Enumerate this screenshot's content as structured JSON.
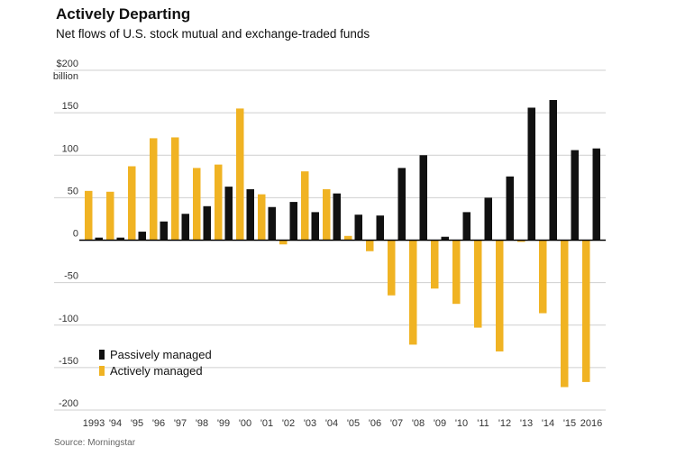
{
  "title": "Actively Departing",
  "subtitle": "Net flows of U.S. stock mutual and exchange-traded funds",
  "source": "Source: Morningstar",
  "colors": {
    "passive": "#111111",
    "active": "#f0b323",
    "grid": "#cfcfcf",
    "zero": "#000000"
  },
  "chart_data": {
    "type": "bar",
    "title": "Actively Departing",
    "subtitle": "Net flows of U.S. stock mutual and exchange-traded funds",
    "xlabel": "",
    "ylabel": "",
    "ylim": [
      -200,
      200
    ],
    "y_ticks": [
      200,
      150,
      100,
      50,
      0,
      -50,
      -100,
      -150,
      -200
    ],
    "y_tick_labels": [
      "$200",
      "150",
      "100",
      "50",
      "0",
      "-50",
      "-100",
      "-150",
      "-200"
    ],
    "y_unit_label": "billion",
    "grid": true,
    "legend_position": "bottom-left",
    "categories": [
      "1993",
      "'94",
      "'95",
      "'96",
      "'97",
      "'98",
      "'99",
      "'00",
      "'01",
      "'02",
      "'03",
      "'04",
      "'05",
      "'06",
      "'07",
      "'08",
      "'09",
      "'10",
      "'11",
      "'12",
      "'13",
      "'14",
      "'15",
      "2016"
    ],
    "series": [
      {
        "name": "Passively managed",
        "color": "#111111",
        "values": [
          3,
          3,
          10,
          22,
          31,
          40,
          63,
          60,
          39,
          45,
          33,
          55,
          30,
          29,
          85,
          100,
          4,
          33,
          50,
          75,
          156,
          165,
          106,
          108
        ]
      },
      {
        "name": "Actively managed",
        "color": "#f0b323",
        "values": [
          58,
          57,
          87,
          120,
          121,
          85,
          89,
          155,
          54,
          -5,
          81,
          60,
          5,
          -13,
          -65,
          -123,
          -57,
          -75,
          -103,
          -131,
          -2,
          -86,
          -173,
          -167
        ]
      }
    ]
  }
}
